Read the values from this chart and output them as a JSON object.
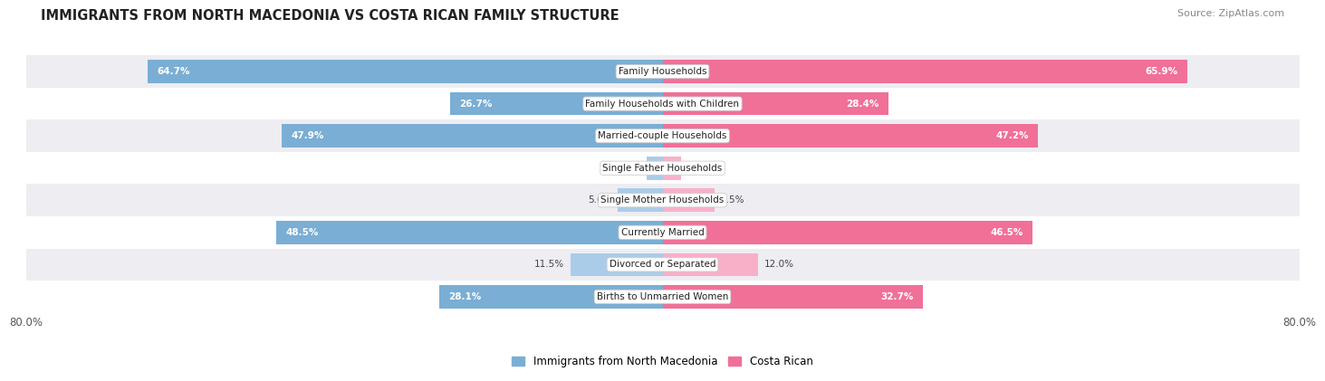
{
  "title": "IMMIGRANTS FROM NORTH MACEDONIA VS COSTA RICAN FAMILY STRUCTURE",
  "source": "Source: ZipAtlas.com",
  "categories": [
    "Family Households",
    "Family Households with Children",
    "Married-couple Households",
    "Single Father Households",
    "Single Mother Households",
    "Currently Married",
    "Divorced or Separated",
    "Births to Unmarried Women"
  ],
  "left_values": [
    64.7,
    26.7,
    47.9,
    2.0,
    5.6,
    48.5,
    11.5,
    28.1
  ],
  "right_values": [
    65.9,
    28.4,
    47.2,
    2.3,
    6.5,
    46.5,
    12.0,
    32.7
  ],
  "left_label": "Immigrants from North Macedonia",
  "right_label": "Costa Rican",
  "axis_max": 80.0,
  "left_color": "#7aaed4",
  "right_color": "#f07098",
  "left_color_light": "#aacce8",
  "right_color_light": "#f8b0c8",
  "bar_height": 0.72,
  "bg_row_colors": [
    "#ededf2",
    "#ffffff"
  ],
  "x_tick_label_left": "80.0%",
  "x_tick_label_right": "80.0%",
  "dark_threshold": 15
}
